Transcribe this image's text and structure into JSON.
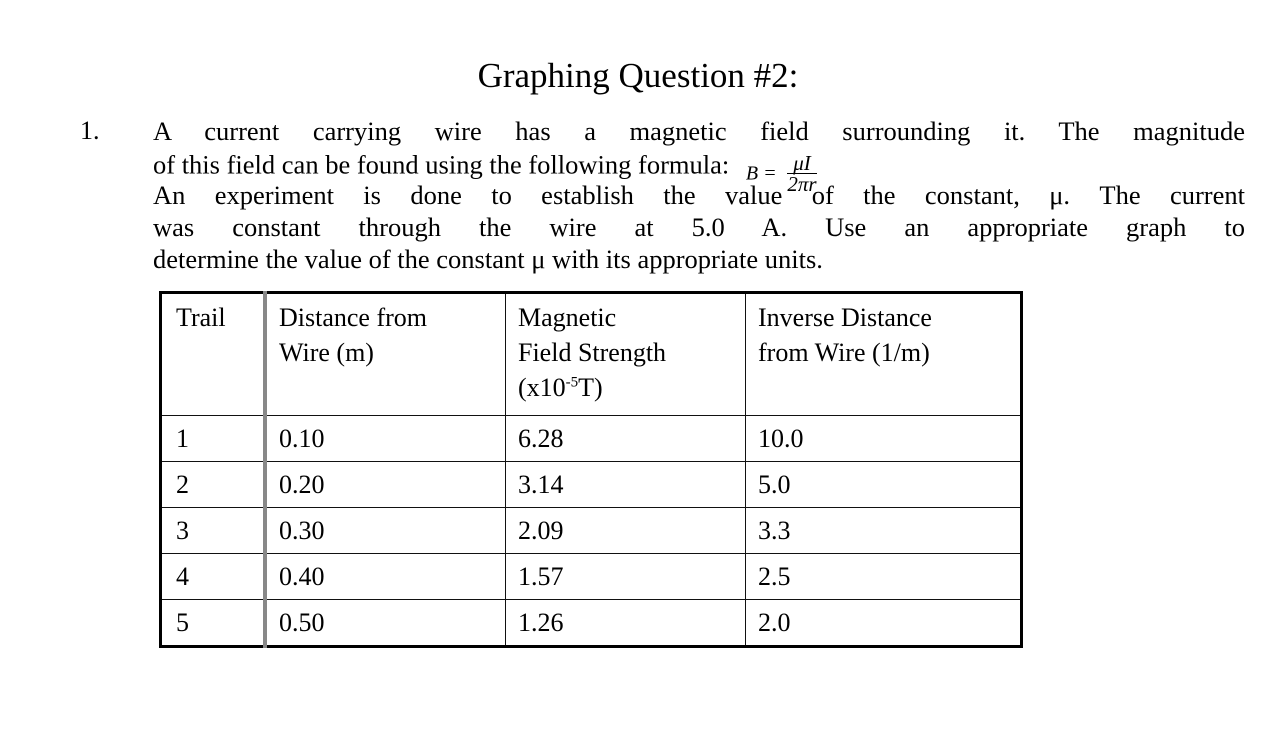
{
  "title": "Graphing Question #2:",
  "question": {
    "number": "1.",
    "line1": "A current carrying wire has a magnetic field surrounding it.  The magnitude",
    "line2": "of this field can be found using the following formula:",
    "formula": {
      "lhs": "B =",
      "numerator": "μI",
      "denominator": "2πr"
    },
    "line3": "An experiment is done to establish the value of the constant, μ.  The current",
    "line4": "was constant through the wire at 5.0 A.  Use an appropriate graph to",
    "line5": "determine the value of the constant μ with its appropriate units."
  },
  "table": {
    "headers": {
      "trail": "Trail",
      "distance_line1": "Distance from",
      "distance_line2": "Wire (m)",
      "field_line1": "Magnetic",
      "field_line2": "Field Strength",
      "field_line3_pre": "(x10",
      "field_line3_sup": "-5",
      "field_line3_post": "T)",
      "inverse_line1": "Inverse Distance",
      "inverse_line2": "from Wire (1/m)"
    },
    "rows": [
      {
        "trail": "1",
        "distance": "0.10",
        "field": "6.28",
        "inverse": "10.0"
      },
      {
        "trail": "2",
        "distance": "0.20",
        "field": "3.14",
        "inverse": "5.0"
      },
      {
        "trail": "3",
        "distance": "0.30",
        "field": "2.09",
        "inverse": "3.3"
      },
      {
        "trail": "4",
        "distance": "0.40",
        "field": "1.57",
        "inverse": "2.5"
      },
      {
        "trail": "5",
        "distance": "0.50",
        "field": "1.26",
        "inverse": "2.0"
      }
    ]
  }
}
